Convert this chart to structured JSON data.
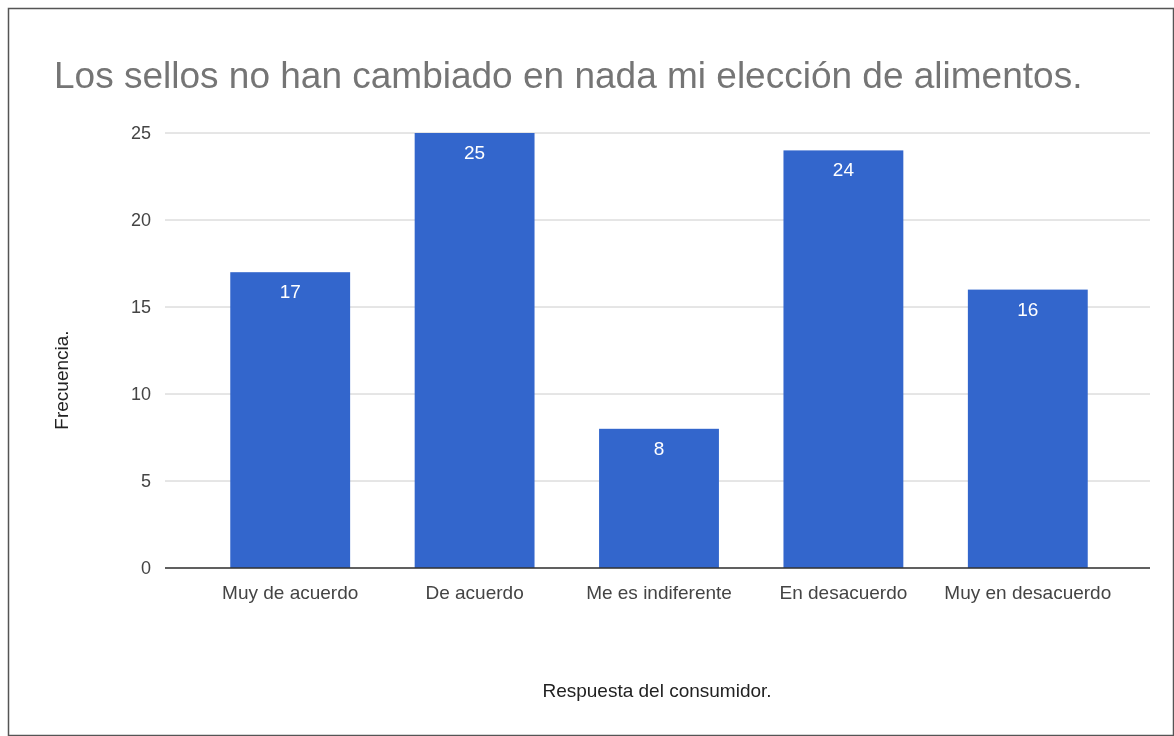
{
  "chart_data": {
    "type": "bar",
    "title": "Los sellos no han cambiado en nada mi elección de alimentos.",
    "xlabel": "Respuesta del consumidor.",
    "ylabel": "Frecuencia.",
    "categories": [
      "Muy de acuerdo",
      "De acuerdo",
      "Me es indiferente",
      "En desacuerdo",
      "Muy en desacuerdo"
    ],
    "values": [
      17,
      25,
      8,
      24,
      16
    ],
    "color": "#3366cc",
    "ylim": [
      0,
      25
    ],
    "yticks": [
      0,
      5,
      10,
      15,
      20,
      25
    ],
    "grid": true,
    "data_labels": true
  }
}
